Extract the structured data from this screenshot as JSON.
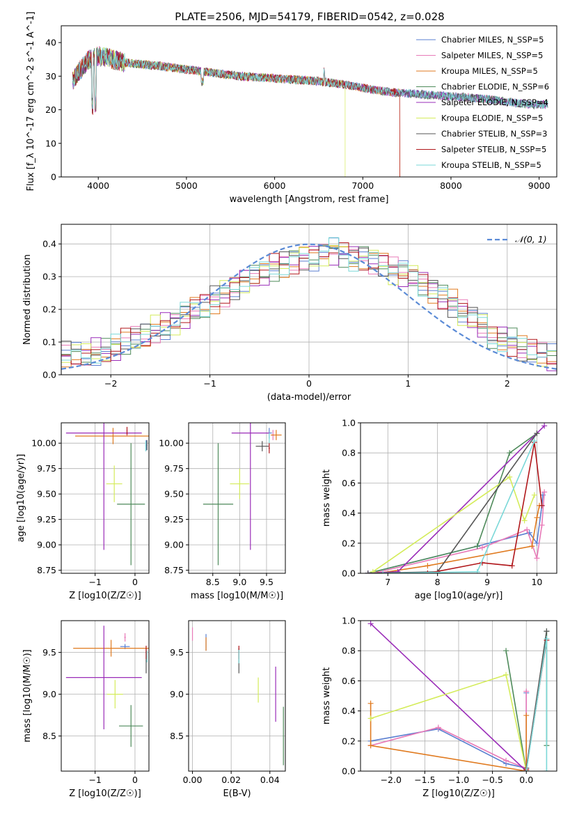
{
  "figure_title": "PLATE=2506, MJD=54179, FIBERID=0542, z=0.028",
  "models": [
    {
      "label": "Chabrier MILES, N_SSP=5",
      "color": "#5a7fd0"
    },
    {
      "label": "Salpeter MILES, N_SSP=5",
      "color": "#e87ab8"
    },
    {
      "label": "Kroupa MILES, N_SSP=5",
      "color": "#e07a1f"
    },
    {
      "label": "Chabrier ELODIE, N_SSP=6",
      "color": "#4e8a5a"
    },
    {
      "label": "Salpeter ELODIE, N_SSP=4",
      "color": "#9a2cb8"
    },
    {
      "label": "Kroupa ELODIE, N_SSP=5",
      "color": "#d4ec5a"
    },
    {
      "label": "Chabrier STELIB, N_SSP=3",
      "color": "#555555"
    },
    {
      "label": "Salpeter STELIB, N_SSP=5",
      "color": "#b0161a"
    },
    {
      "label": "Kroupa STELIB, N_SSP=5",
      "color": "#7ad8d8"
    }
  ],
  "chart_data": [
    {
      "id": "spectrum",
      "type": "line",
      "title": "PLATE=2506, MJD=54179, FIBERID=0542, z=0.028",
      "xlabel": "wavelength [Angstrom, rest frame]",
      "ylabel": "Flux [f_λ 10^-17 erg cm^-2 s^-1 A^-1]",
      "xlim": [
        3580,
        9200
      ],
      "ylim": [
        0,
        45
      ],
      "xticks": [
        4000,
        5000,
        6000,
        7000,
        8000,
        9000
      ],
      "yticks": [
        0,
        10,
        20,
        30,
        40
      ],
      "continuum_x": [
        3720,
        3800,
        3900,
        4000,
        4100,
        4300,
        4500,
        4700,
        5000,
        5300,
        5600,
        5900,
        6200,
        6500,
        6800,
        7100,
        7400,
        7700,
        8000,
        8300,
        8600,
        8900
      ],
      "continuum_y": [
        29,
        32,
        35,
        36,
        35.5,
        34,
        33.5,
        33,
        32,
        31,
        30,
        29.5,
        29,
        28.5,
        27.5,
        26,
        25,
        24.5,
        24,
        23.5,
        22.5,
        21.5
      ],
      "series_xrange": [
        [
          3710,
          9100
        ],
        [
          3710,
          9100
        ],
        [
          3710,
          7420
        ],
        [
          3710,
          9100
        ],
        [
          3710,
          9100
        ],
        [
          3710,
          6800
        ],
        [
          3710,
          9100
        ],
        [
          3710,
          7420
        ],
        [
          3710,
          9100
        ]
      ],
      "legend": "top-right"
    },
    {
      "id": "residuals",
      "type": "line",
      "xlabel": "(data-model)/error",
      "ylabel": "Normed distribution",
      "xlim": [
        -2.5,
        2.5
      ],
      "ylim": [
        0,
        0.46
      ],
      "xticks": [
        -2,
        -1,
        0,
        1,
        2
      ],
      "yticks": [
        0.0,
        0.1,
        0.2,
        0.3,
        0.4
      ],
      "reference_label": "𝒩(0, 1)",
      "reference_color": "#5b8bd6",
      "bin_width": 0.1,
      "hist_base": [
        0.06,
        0.06,
        0.06,
        0.07,
        0.07,
        0.08,
        0.1,
        0.11,
        0.12,
        0.14,
        0.15,
        0.16,
        0.18,
        0.2,
        0.21,
        0.23,
        0.25,
        0.27,
        0.29,
        0.3,
        0.31,
        0.33,
        0.34,
        0.35,
        0.36,
        0.36,
        0.37,
        0.38,
        0.37,
        0.36,
        0.36,
        0.35,
        0.34,
        0.32,
        0.31,
        0.3,
        0.28,
        0.26,
        0.24,
        0.22,
        0.19,
        0.17,
        0.15,
        0.12,
        0.11,
        0.1,
        0.08,
        0.07,
        0.06,
        0.05
      ]
    },
    {
      "id": "age_vs_Z",
      "type": "scatter",
      "xlabel": "Z [log10(Z/Z☉)]",
      "ylabel": "age [log10(age/yr)]",
      "xlim": [
        -1.85,
        0.35
      ],
      "ylim": [
        8.72,
        10.2
      ],
      "xticks": [
        -1,
        0
      ],
      "yticks": [
        8.75,
        9.0,
        9.25,
        9.5,
        9.75,
        10.0
      ],
      "points": [
        {
          "x": 0.28,
          "y": 9.98,
          "xerr": 0.02,
          "yerr": 0.05
        },
        {
          "x": -0.2,
          "y": 10.1,
          "xerr": 0.04,
          "yerr": 0.03
        },
        {
          "x": -0.55,
          "y": 10.07,
          "xerr": 0.95,
          "yerr": 0.08
        },
        {
          "x": -0.1,
          "y": 9.4,
          "xerr": 0.35,
          "yerr": 0.6
        },
        {
          "x": -0.78,
          "y": 10.1,
          "xerr": 0.95,
          "yerr": 1.15
        },
        {
          "x": -0.52,
          "y": 9.6,
          "xerr": 0.2,
          "yerr": 0.18
        },
        {
          "x": 0.3,
          "y": 9.98,
          "xerr": 0.01,
          "yerr": 0.05
        },
        {
          "x": -0.2,
          "y": 10.12,
          "xerr": 0.01,
          "yerr": 0.04
        },
        {
          "x": 0.27,
          "y": 9.97,
          "xerr": 0.01,
          "yerr": 0.05
        }
      ]
    },
    {
      "id": "age_vs_mass",
      "type": "scatter",
      "xlabel": "mass [log10(M/M☉)]",
      "ylabel": "",
      "xlim": [
        8.05,
        9.85
      ],
      "ylim": [
        8.72,
        10.2
      ],
      "xticks": [
        8.5,
        9.0,
        9.5
      ],
      "yticks": [
        8.75,
        9.0,
        9.25,
        9.5,
        9.75,
        10.0
      ],
      "points": [
        {
          "x": 9.55,
          "y": 10.1,
          "xerr": 0.05,
          "yerr": 0.05
        },
        {
          "x": 9.62,
          "y": 10.08,
          "xerr": 0.03,
          "yerr": 0.05
        },
        {
          "x": 9.68,
          "y": 10.08,
          "xerr": 0.1,
          "yerr": 0.05
        },
        {
          "x": 8.6,
          "y": 9.4,
          "xerr": 0.28,
          "yerr": 0.6
        },
        {
          "x": 9.2,
          "y": 10.1,
          "xerr": 0.35,
          "yerr": 1.15
        },
        {
          "x": 9.0,
          "y": 9.6,
          "xerr": 0.18,
          "yerr": 0.15
        },
        {
          "x": 9.42,
          "y": 9.97,
          "xerr": 0.12,
          "yerr": 0.05
        },
        {
          "x": 9.55,
          "y": 9.95,
          "xerr": 0.01,
          "yerr": 0.05
        },
        {
          "x": 9.55,
          "y": 10.05,
          "xerr": 0.01,
          "yerr": 0.05
        }
      ]
    },
    {
      "id": "mass_weight_vs_age",
      "type": "line",
      "xlabel": "age [log10(age/yr)]",
      "ylabel": "mass weight",
      "xlim": [
        6.45,
        10.4
      ],
      "ylim": [
        0,
        1.0
      ],
      "xticks": [
        7,
        8,
        9,
        10
      ],
      "yticks": [
        0.0,
        0.2,
        0.4,
        0.6,
        0.8,
        1.0
      ],
      "series": [
        {
          "x": [
            6.6,
            8.8,
            9.85,
            10.0,
            10.1,
            10.12
          ],
          "y": [
            0.0,
            0.18,
            0.27,
            0.2,
            0.45,
            0.52
          ]
        },
        {
          "x": [
            6.7,
            8.9,
            9.8,
            10.0,
            10.1,
            10.15
          ],
          "y": [
            0.0,
            0.17,
            0.29,
            0.1,
            0.32,
            0.54
          ]
        },
        {
          "x": [
            6.8,
            7.8,
            9.9,
            10.0,
            10.05
          ],
          "y": [
            0.0,
            0.05,
            0.18,
            0.37,
            0.45
          ]
        },
        {
          "x": [
            6.6,
            8.8,
            9.45,
            10.0
          ],
          "y": [
            0.0,
            0.18,
            0.8,
            0.93
          ]
        },
        {
          "x": [
            6.6,
            7.2,
            10.15
          ],
          "y": [
            0.0,
            0.01,
            0.98
          ]
        },
        {
          "x": [
            6.7,
            9.45,
            9.75,
            9.95
          ],
          "y": [
            0.01,
            0.64,
            0.35,
            0.52
          ]
        },
        {
          "x": [
            6.6,
            8.0,
            10.0
          ],
          "y": [
            0.0,
            0.01,
            0.93
          ]
        },
        {
          "x": [
            7.8,
            8.9,
            9.5,
            9.95,
            10.1
          ],
          "y": [
            0.0,
            0.07,
            0.05,
            0.87,
            0.45
          ]
        },
        {
          "x": [
            6.9,
            8.8,
            9.95
          ],
          "y": [
            0.0,
            0.01,
            0.88
          ]
        }
      ]
    },
    {
      "id": "mass_vs_Z",
      "type": "scatter",
      "xlabel": "Z [log10(Z/Z☉)]",
      "ylabel": "mass [log10(M/M☉)]",
      "xlim": [
        -1.85,
        0.35
      ],
      "ylim": [
        8.08,
        9.88
      ],
      "xticks": [
        -1,
        0
      ],
      "yticks": [
        8.5,
        9.0,
        9.5
      ],
      "points": [
        {
          "x": -0.25,
          "y": 9.57,
          "xerr": 0.12,
          "yerr": 0.03
        },
        {
          "x": -0.25,
          "y": 9.68,
          "xerr": 0.02,
          "yerr": 0.05
        },
        {
          "x": -0.6,
          "y": 9.55,
          "xerr": 0.95,
          "yerr": 0.1
        },
        {
          "x": -0.1,
          "y": 8.62,
          "xerr": 0.3,
          "yerr": 0.25
        },
        {
          "x": -0.78,
          "y": 9.2,
          "xerr": 0.95,
          "yerr": 0.62
        },
        {
          "x": -0.5,
          "y": 9.0,
          "xerr": 0.2,
          "yerr": 0.17
        },
        {
          "x": 0.28,
          "y": 9.4,
          "xerr": 0.01,
          "yerr": 0.15
        },
        {
          "x": 0.28,
          "y": 9.5,
          "xerr": 0.01,
          "yerr": 0.08
        },
        {
          "x": 0.3,
          "y": 9.45,
          "xerr": 0.01,
          "yerr": 0.07
        }
      ]
    },
    {
      "id": "mass_vs_ebv",
      "type": "scatter",
      "xlabel": "E(B-V)",
      "ylabel": "",
      "xlim": [
        -0.002,
        0.048
      ],
      "ylim": [
        8.08,
        9.88
      ],
      "xticks": [
        0.0,
        0.02,
        0.04
      ],
      "yticks": [
        8.5,
        9.0,
        9.5
      ],
      "points": [
        {
          "x": 0.007,
          "y": 9.62,
          "xerr": 0.0,
          "yerr": 0.1
        },
        {
          "x": 0.0,
          "y": 9.72,
          "xerr": 0.0,
          "yerr": 0.08
        },
        {
          "x": 0.007,
          "y": 9.6,
          "xerr": 0.0,
          "yerr": 0.08
        },
        {
          "x": 0.047,
          "y": 8.5,
          "xerr": 0.0,
          "yerr": 0.35
        },
        {
          "x": 0.043,
          "y": 9.0,
          "xerr": 0.0,
          "yerr": 0.33
        },
        {
          "x": 0.034,
          "y": 9.05,
          "xerr": 0.0,
          "yerr": 0.15
        },
        {
          "x": 0.024,
          "y": 9.4,
          "xerr": 0.0,
          "yerr": 0.15
        },
        {
          "x": 0.024,
          "y": 9.5,
          "xerr": 0.0,
          "yerr": 0.08
        },
        {
          "x": 0.024,
          "y": 9.45,
          "xerr": 0.0,
          "yerr": 0.08
        }
      ]
    },
    {
      "id": "mass_weight_vs_Z",
      "type": "line",
      "xlabel": "Z [log10(Z/Z☉)]",
      "ylabel": "mass weight",
      "xlim": [
        -2.45,
        0.45
      ],
      "ylim": [
        0,
        1.0
      ],
      "xticks": [
        -2.0,
        -1.5,
        -1.0,
        -0.5,
        0.0
      ],
      "yticks": [
        0.0,
        0.2,
        0.4,
        0.6,
        0.8,
        1.0
      ],
      "series": [
        {
          "x": [
            -2.3,
            -1.3,
            -0.3,
            0.0,
            0.0
          ],
          "y": [
            0.2,
            0.28,
            0.05,
            0.02,
            0.52
          ]
        },
        {
          "x": [
            -2.3,
            -1.3,
            -0.3,
            0.0,
            0.0
          ],
          "y": [
            0.17,
            0.29,
            0.07,
            0.02,
            0.53
          ]
        },
        {
          "x": [
            -2.3,
            -2.3,
            0.0,
            0.0
          ],
          "y": [
            0.45,
            0.17,
            0.0,
            0.37
          ]
        },
        {
          "x": [
            -0.3,
            0.0,
            0.3,
            0.3
          ],
          "y": [
            0.8,
            0.0,
            0.93,
            0.17
          ]
        },
        {
          "x": [
            -2.3,
            0.0
          ],
          "y": [
            0.98,
            0.0
          ]
        },
        {
          "x": [
            -2.3,
            -0.3,
            0.0
          ],
          "y": [
            0.35,
            0.64,
            0.0
          ]
        },
        {
          "x": [
            0.0,
            0.3
          ],
          "y": [
            0.02,
            0.93
          ]
        },
        {
          "x": [
            0.0,
            0.3
          ],
          "y": [
            0.01,
            0.87
          ]
        },
        {
          "x": [
            0.0,
            0.3,
            0.3
          ],
          "y": [
            0.0,
            0.88,
            0.0
          ]
        }
      ]
    }
  ]
}
